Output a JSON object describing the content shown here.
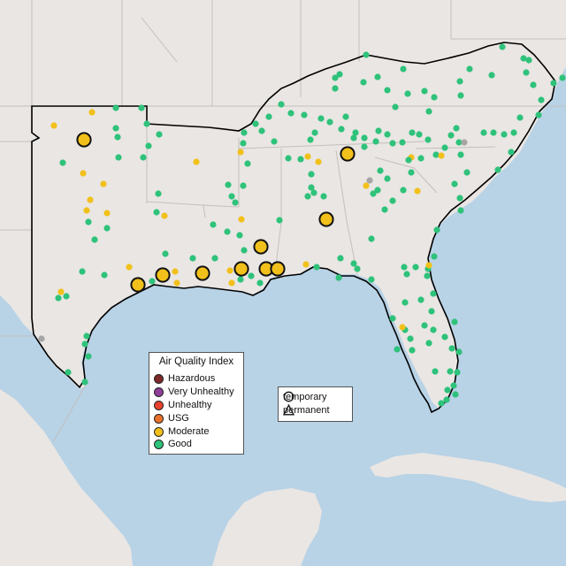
{
  "legend": {
    "title": "Air Quality Index",
    "items": [
      {
        "label": "Hazardous",
        "color": "#7e2a2a"
      },
      {
        "label": "Very Unhealthy",
        "color": "#8f3f97"
      },
      {
        "label": "Unhealthy",
        "color": "#e8422e"
      },
      {
        "label": "USG",
        "color": "#e8722c"
      },
      {
        "label": "Moderate",
        "color": "#f2c01a"
      },
      {
        "label": "Good",
        "color": "#2ec27a"
      }
    ]
  },
  "shape_legend": {
    "items": [
      {
        "label": "temporary",
        "icon": "circle-outline-icon"
      },
      {
        "label": "permanent",
        "icon": "triangle-outline-icon"
      }
    ]
  },
  "colors": {
    "water": "#b8d2e6",
    "land": "#e9e6e3",
    "region_border": "#000000",
    "good": "#2ec27a",
    "moderate": "#f2c01a",
    "no_data": "#a6a6a6"
  }
}
